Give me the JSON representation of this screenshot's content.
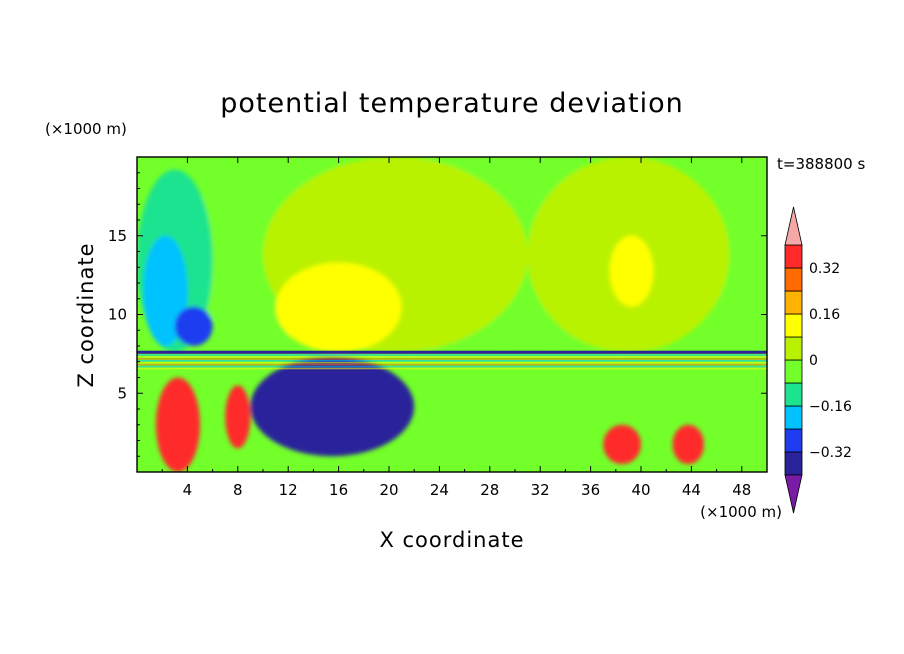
{
  "chart_data": {
    "type": "heatmap",
    "title": "potential temperature deviation",
    "xlabel": "X coordinate",
    "ylabel": "Z coordinate",
    "x_unit": "(×1000 m)",
    "y_unit": "(×1000 m)",
    "time_label": "t=388800 s",
    "xlim": [
      0,
      50
    ],
    "ylim": [
      0,
      20
    ],
    "x_ticks": [
      4,
      8,
      12,
      16,
      20,
      24,
      28,
      32,
      36,
      40,
      44,
      48
    ],
    "y_ticks": [
      5,
      10,
      15
    ],
    "colorbar": {
      "levels": [
        -0.4,
        -0.32,
        -0.24,
        -0.16,
        -0.08,
        0,
        0.08,
        0.16,
        0.24,
        0.32,
        0.4
      ],
      "colors": [
        "#7a1ba6",
        "#2a239b",
        "#1f3df0",
        "#00c2ff",
        "#1de38f",
        "#73ff2a",
        "#b9f200",
        "#ffff00",
        "#ffb200",
        "#ff6b00",
        "#ff2a2a",
        "#f6a8a8"
      ],
      "labeled_ticks": [
        "0.32",
        "0.16",
        "0",
        "−0.16",
        "−0.32"
      ],
      "labeled_values": [
        0.32,
        0.16,
        0,
        -0.16,
        -0.32
      ],
      "extend": "both"
    },
    "grid": false,
    "regions": [
      {
        "name": "upper-layer-background",
        "x": [
          0,
          50
        ],
        "z": [
          7.6,
          20
        ],
        "value": -0.03
      },
      {
        "name": "upper-left-cool",
        "x": [
          0,
          6
        ],
        "z": [
          7.6,
          19.2
        ],
        "value": -0.12
      },
      {
        "name": "upper-left-cold-core",
        "x": [
          0.5,
          4
        ],
        "z": [
          8,
          15
        ],
        "value": -0.2
      },
      {
        "name": "upper-left-coldest",
        "x": [
          3,
          6
        ],
        "z": [
          8,
          10.5
        ],
        "value": -0.28
      },
      {
        "name": "upper-near-zero-band-1",
        "x": [
          10,
          31
        ],
        "z": [
          7.6,
          20
        ],
        "value": 0.02
      },
      {
        "name": "upper-near-zero-band-2",
        "x": [
          31,
          47
        ],
        "z": [
          7.6,
          20
        ],
        "value": 0.02
      },
      {
        "name": "upper-warm-patch-left",
        "x": [
          11,
          21
        ],
        "z": [
          7.6,
          13.3
        ],
        "value": 0.12
      },
      {
        "name": "upper-warm-patch-right",
        "x": [
          37.5,
          41
        ],
        "z": [
          10.5,
          15
        ],
        "value": 0.12
      },
      {
        "name": "lower-warm-left-1",
        "x": [
          1.5,
          5
        ],
        "z": [
          0,
          6
        ],
        "value": 0.36
      },
      {
        "name": "lower-warm-left-2",
        "x": [
          7,
          9
        ],
        "z": [
          1.5,
          5.5
        ],
        "value": 0.36
      },
      {
        "name": "lower-cold-swirl",
        "x": [
          9,
          22
        ],
        "z": [
          1,
          7.3
        ],
        "value": -0.36
      },
      {
        "name": "lower-warm-blob-38",
        "x": [
          37,
          40
        ],
        "z": [
          0.5,
          3
        ],
        "value": 0.36
      },
      {
        "name": "lower-warm-blob-43",
        "x": [
          42.5,
          45
        ],
        "z": [
          0.5,
          3
        ],
        "value": 0.36
      }
    ]
  }
}
